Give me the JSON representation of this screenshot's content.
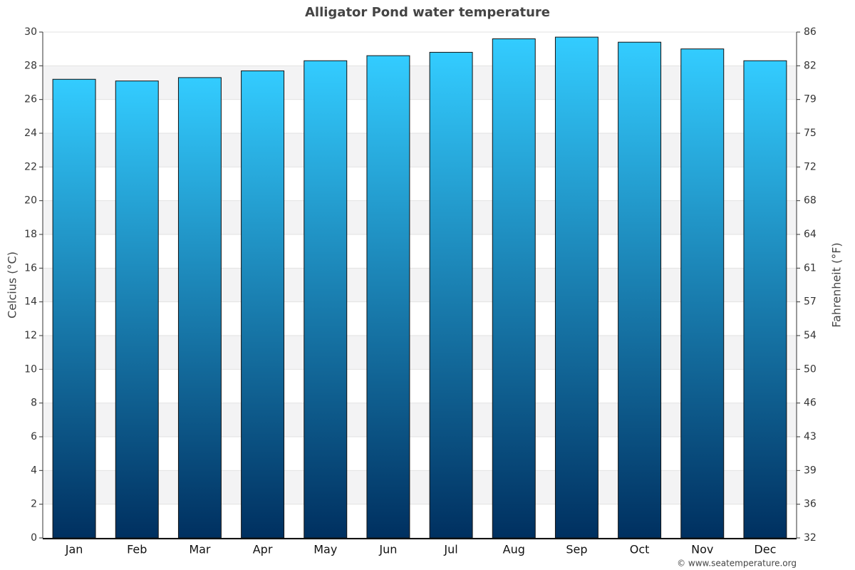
{
  "chart_data": {
    "type": "bar",
    "title": "Alligator Pond water temperature",
    "y_label": "Celcius (°C)",
    "y2_label": "Fahrenheit (°F)",
    "credit": "© www.seatemperature.org",
    "categories": [
      "Jan",
      "Feb",
      "Mar",
      "Apr",
      "May",
      "Jun",
      "Jul",
      "Aug",
      "Sep",
      "Oct",
      "Nov",
      "Dec"
    ],
    "values": [
      27.2,
      27.1,
      27.3,
      27.7,
      28.3,
      28.6,
      28.8,
      29.6,
      29.7,
      29.4,
      29.0,
      28.3
    ],
    "color": [
      "#33ccff",
      "#003060"
    ],
    "ylim": [
      0,
      30
    ],
    "yticks": [
      0,
      2,
      4,
      6,
      8,
      10,
      12,
      14,
      16,
      18,
      20,
      22,
      24,
      26,
      28,
      30
    ],
    "y2lim": [
      32,
      86
    ],
    "y2ticks": [
      32,
      {
        "value": 35.6,
        "label": "36"
      },
      {
        "value": 39.2,
        "label": "39"
      },
      {
        "value": 42.8,
        "label": "43"
      },
      {
        "value": 46.4,
        "label": "46"
      },
      50,
      {
        "value": 53.6,
        "label": "54"
      },
      {
        "value": 57.2,
        "label": "57"
      },
      {
        "value": 60.8,
        "label": "61"
      },
      {
        "value": 64.4,
        "label": "64"
      },
      68,
      {
        "value": 71.6,
        "label": "72"
      },
      {
        "value": 75.2,
        "label": "75"
      },
      {
        "value": 78.8,
        "label": "79"
      },
      {
        "value": 82.4,
        "label": "82"
      },
      86
    ],
    "grid": true
  }
}
